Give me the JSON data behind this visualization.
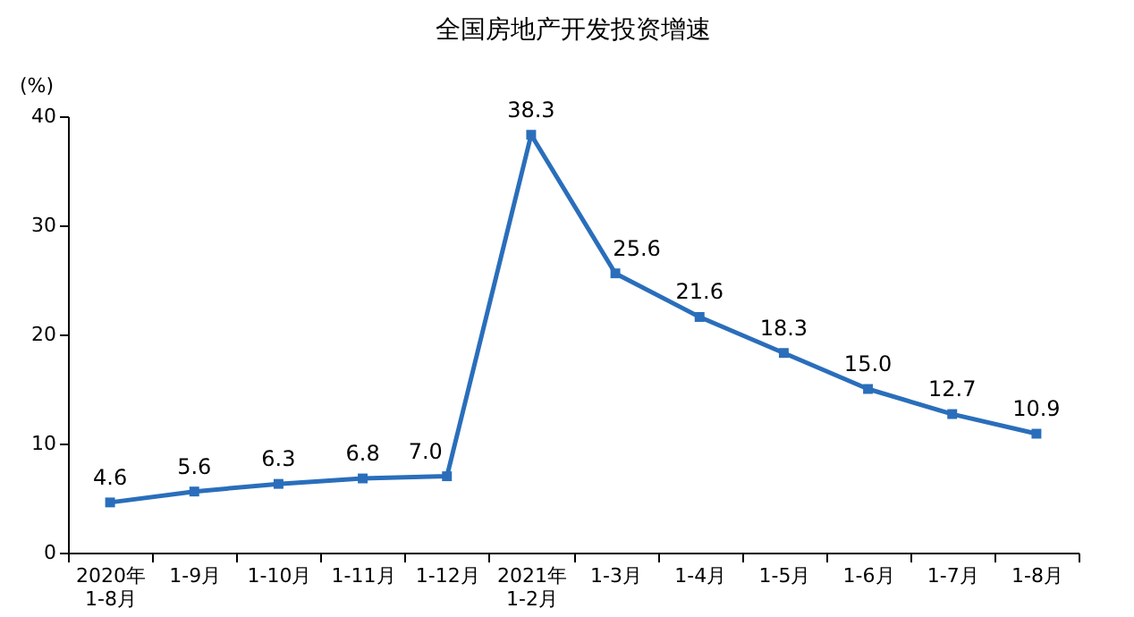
{
  "chart_data": {
    "type": "line",
    "title": "全国房地产开发投资增速",
    "ylabel": "(%)",
    "categories": [
      "2020年\n1-8月",
      "1-9月",
      "1-10月",
      "1-11月",
      "1-12月",
      "2021年\n1-2月",
      "1-3月",
      "1-4月",
      "1-5月",
      "1-6月",
      "1-7月",
      "1-8月"
    ],
    "series": [
      {
        "color": "#2a6ebb",
        "values": [
          4.6,
          5.6,
          6.3,
          6.8,
          7.0,
          38.3,
          25.6,
          21.6,
          18.3,
          15.0,
          12.7,
          10.9
        ]
      }
    ],
    "value_labels": [
      "4.6",
      "5.6",
      "6.3",
      "6.8",
      "7.0",
      "38.3",
      "25.6",
      "21.6",
      "18.3",
      "15.0",
      "12.7",
      "10.9"
    ],
    "ylim": [
      0,
      40
    ],
    "yticks": [
      0,
      10,
      20,
      30,
      40
    ],
    "grid": false,
    "marker": "square",
    "line_style": "solid"
  }
}
